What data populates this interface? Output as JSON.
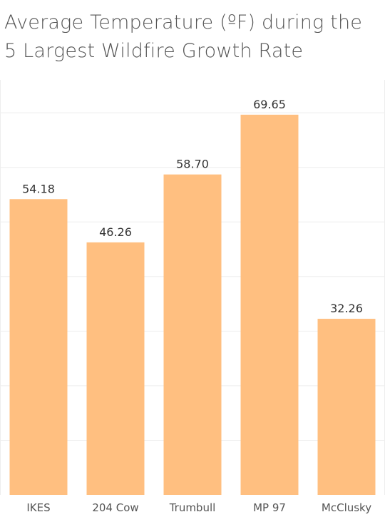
{
  "chart_data": {
    "type": "bar",
    "title_lines": [
      "Average Temperature (ºF) during the",
      "5 Largest Wildfire Growth Rate"
    ],
    "categories": [
      "IKES",
      "204 Cow",
      "Trumbull",
      "MP 97",
      "McClusky"
    ],
    "values": [
      54.18,
      46.26,
      58.7,
      69.65,
      32.26
    ],
    "value_labels": [
      "54.18",
      "46.26",
      "58.70",
      "69.65",
      "32.26"
    ],
    "xlabel": "",
    "ylabel": "",
    "ylim": [
      0,
      75
    ],
    "grid": true,
    "bar_color": "#FFBF80"
  }
}
